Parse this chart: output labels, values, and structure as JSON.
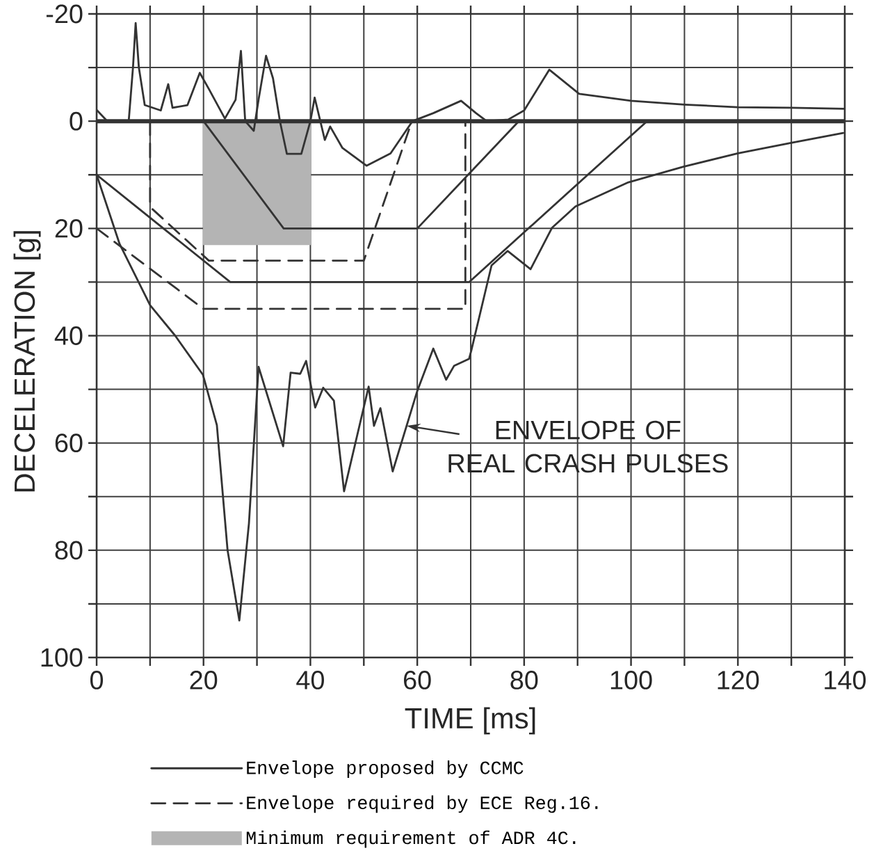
{
  "chart_data": {
    "type": "line",
    "xlabel": "TIME [ms]",
    "ylabel": "DECELERATION [g]",
    "xlim": [
      0,
      140
    ],
    "xticks": [
      0,
      {
        "value": 10,
        "label": null
      },
      20,
      {
        "value": 30,
        "label": null
      },
      40,
      {
        "value": 50,
        "label": null
      },
      60,
      {
        "value": 70,
        "label": null
      },
      80,
      {
        "value": 90,
        "label": null
      },
      100,
      {
        "value": 110,
        "label": null
      },
      120,
      {
        "value": 130,
        "label": null
      },
      140
    ],
    "ylim": [
      100,
      -20
    ],
    "yticks": [
      -20,
      {
        "value": -10,
        "label": null
      },
      0,
      {
        "value": 10,
        "label": null
      },
      20,
      {
        "value": 30,
        "label": null
      },
      40,
      {
        "value": 50,
        "label": null
      },
      60,
      {
        "value": 70,
        "label": null
      },
      80,
      {
        "value": 90,
        "label": null
      },
      100
    ],
    "grid": true,
    "legend": "bottom",
    "ref_lines": [
      {
        "axis": "y",
        "value": 0,
        "color": "#333333"
      }
    ],
    "annotations": [
      {
        "text": "ENVELOPE OF REAL CRASH PULSES",
        "x": 58,
        "y": 56.8
      }
    ],
    "series": [
      {
        "color": "#333333",
        "x": [
          0,
          2,
          6,
          6.8,
          7.3,
          7.9,
          9,
          12,
          13.4,
          14.2,
          17,
          19.3,
          21,
          24,
          26,
          27,
          27.8,
          29.4,
          30.3,
          31.7,
          33,
          34.3,
          35.6,
          38.3,
          40,
          40.8,
          42.7,
          43.7,
          46,
          50.5,
          55,
          59.1,
          63,
          68.2,
          71,
          73,
          77,
          80,
          84.7,
          90.3,
          100,
          110,
          120,
          130,
          140
        ],
        "values": [
          -2.1,
          0,
          0,
          -10,
          -18.3,
          -10,
          -3,
          -2,
          -6.9,
          -2.5,
          -3,
          -9,
          -6,
          -0.5,
          -4,
          -13.1,
          0,
          1.8,
          -4,
          -12.2,
          -8,
          0,
          6.1,
          6.1,
          0,
          -4.4,
          3.5,
          1,
          5,
          8.3,
          6,
          0,
          -1.5,
          -3.8,
          -1.5,
          0,
          -0.3,
          -2,
          -9.6,
          -5.1,
          -3.8,
          -3.1,
          -2.6,
          -2.5,
          -2.3
        ]
      },
      {
        "color": "#333333",
        "x": [
          0,
          4.3,
          10,
          14.7,
          19.9,
          22.5,
          24.5,
          26.7,
          28.5,
          30.3,
          34.9,
          36.3,
          38.1,
          39.2,
          40.9,
          42.4,
          44.4,
          46.3,
          50.9,
          51.9,
          53.1,
          55.4,
          60,
          63,
          65.4,
          66.9,
          69.7,
          70.1,
          73.9,
          76.9,
          81.2,
          85.2,
          89.6,
          99.5,
          109.8,
          120,
          130.1,
          139.7
        ],
        "values": [
          10,
          22.9,
          34.3,
          40,
          47.3,
          56.7,
          80,
          93.1,
          75,
          45.8,
          60.6,
          46.9,
          47.1,
          44.7,
          53.4,
          49.7,
          52.1,
          69,
          49.5,
          56.8,
          53.5,
          65.3,
          50.3,
          42.4,
          48.2,
          45.6,
          44.3,
          42.8,
          26.9,
          24.2,
          27.6,
          19.9,
          15.9,
          11.4,
          8.5,
          6,
          4,
          2.2
        ]
      },
      {
        "name": "Envelope proposed by CCMC",
        "color": "#333333",
        "x": [
          0,
          25,
          69.7,
          103
        ],
        "values": [
          10,
          30,
          30,
          0
        ]
      },
      {
        "color": "#333333",
        "x": [
          20,
          35,
          60,
          79
        ],
        "values": [
          0,
          20,
          20,
          0
        ]
      },
      {
        "name": "Envelope required by ECE Reg.16.",
        "color": "#333333",
        "line_style": "dashed",
        "x": [
          0,
          20,
          69,
          69
        ],
        "values": [
          20,
          35,
          35,
          0
        ]
      },
      {
        "color": "#333333",
        "line_style": "dashed",
        "x": [
          10,
          10,
          21,
          50,
          59
        ],
        "values": [
          0,
          16,
          26,
          26,
          0
        ]
      },
      {
        "name": "Minimum requirement of ADR 4C.",
        "type": "area",
        "color": "#b4b4b4",
        "x": [
          20,
          40
        ],
        "values": [
          23,
          23
        ]
      }
    ]
  }
}
